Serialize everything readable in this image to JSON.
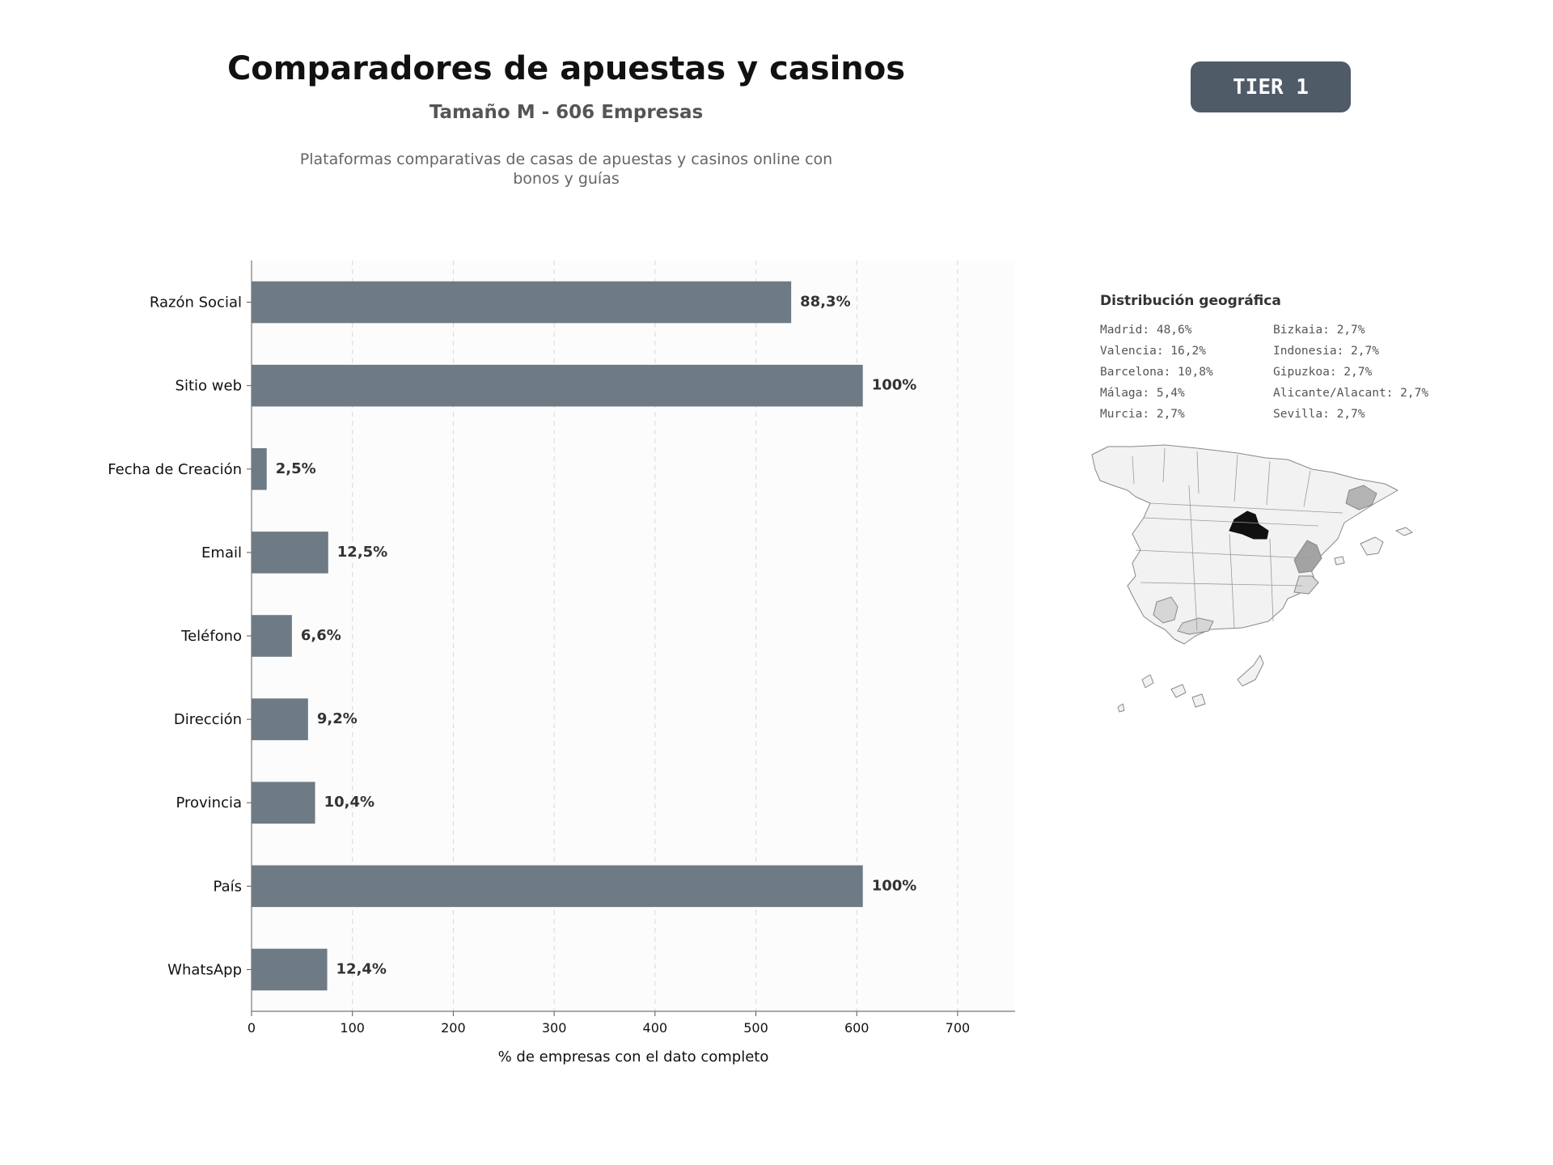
{
  "header": {
    "title": "Comparadores de apuestas y casinos",
    "subtitle": "Tamaño M - 606 Empresas",
    "description_line1": "Plataformas comparativas de casas de apuestas y casinos online con",
    "description_line2": "bonos y guías",
    "tier_badge": "TIER 1"
  },
  "chart_data": {
    "type": "bar",
    "orientation": "horizontal",
    "categories": [
      "Razón Social",
      "Sitio web",
      "Fecha de Creación",
      "Email",
      "Teléfono",
      "Dirección",
      "Provincia",
      "País",
      "WhatsApp"
    ],
    "values": [
      535,
      606,
      15,
      76,
      40,
      56,
      63,
      606,
      75
    ],
    "data_labels": [
      "88,3%",
      "100%",
      "2,5%",
      "12,5%",
      "6,6%",
      "9,2%",
      "10,4%",
      "100%",
      "12,4%"
    ],
    "xlabel": "% de empresas con el dato completo",
    "ylabel": "",
    "xlim": [
      0,
      757
    ],
    "xticks": [
      0,
      100,
      200,
      300,
      400,
      500,
      600,
      700
    ],
    "grid": "vertical dashed",
    "bar_color": "#6e7a84"
  },
  "geo": {
    "title": "Distribución geográfica",
    "items": [
      "Madrid: 48,6%",
      "Bizkaia: 2,7%",
      "Valencia: 16,2%",
      "Indonesia: 2,7%",
      "Barcelona: 10,8%",
      "Gipuzkoa: 2,7%",
      "Málaga: 5,4%",
      "Alicante/Alacant: 2,7%",
      "Murcia: 2,7%",
      "Sevilla: 2,7%"
    ],
    "map_colors": {
      "base": "#f2f2f2",
      "border": "#888888",
      "madrid": "#111111",
      "valencia": "#a3a3a3",
      "barcelona": "#b4b4b4",
      "malaga_sevilla": "#d6d6d6"
    }
  }
}
